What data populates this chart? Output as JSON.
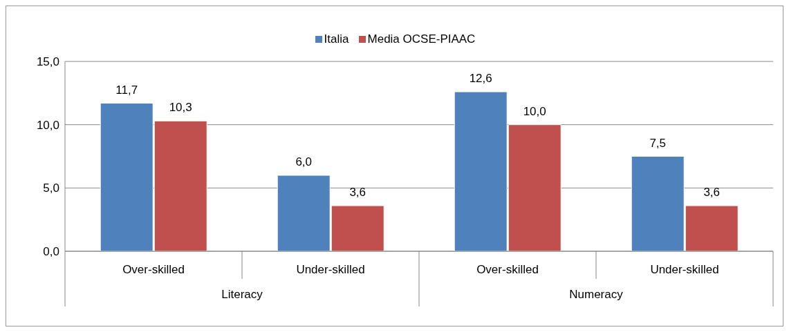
{
  "chart_data": {
    "type": "bar",
    "categories": [
      "Over-skilled",
      "Under-skilled",
      "Over-skilled",
      "Under-skilled"
    ],
    "series": [
      {
        "name": "Italia",
        "color": "#4f81bd",
        "values": [
          11.7,
          6.0,
          12.6,
          7.5
        ],
        "value_labels": [
          "11,7",
          "6,0",
          "12,6",
          "7,5"
        ]
      },
      {
        "name": "Media OCSE-PIAAC",
        "color": "#c0504d",
        "values": [
          10.3,
          3.6,
          10.0,
          3.6
        ],
        "value_labels": [
          "10,3",
          "3,6",
          "10,0",
          "3,6"
        ]
      }
    ],
    "ylim": [
      0,
      15
    ],
    "yticks": [
      {
        "value": 0,
        "label": "0,0"
      },
      {
        "value": 5,
        "label": "5,0"
      },
      {
        "value": 10,
        "label": "10,0"
      },
      {
        "value": 15,
        "label": "15,0"
      }
    ],
    "grid": "y",
    "legend": "top",
    "annotations": [
      "Literacy",
      "Numeracy"
    ]
  }
}
